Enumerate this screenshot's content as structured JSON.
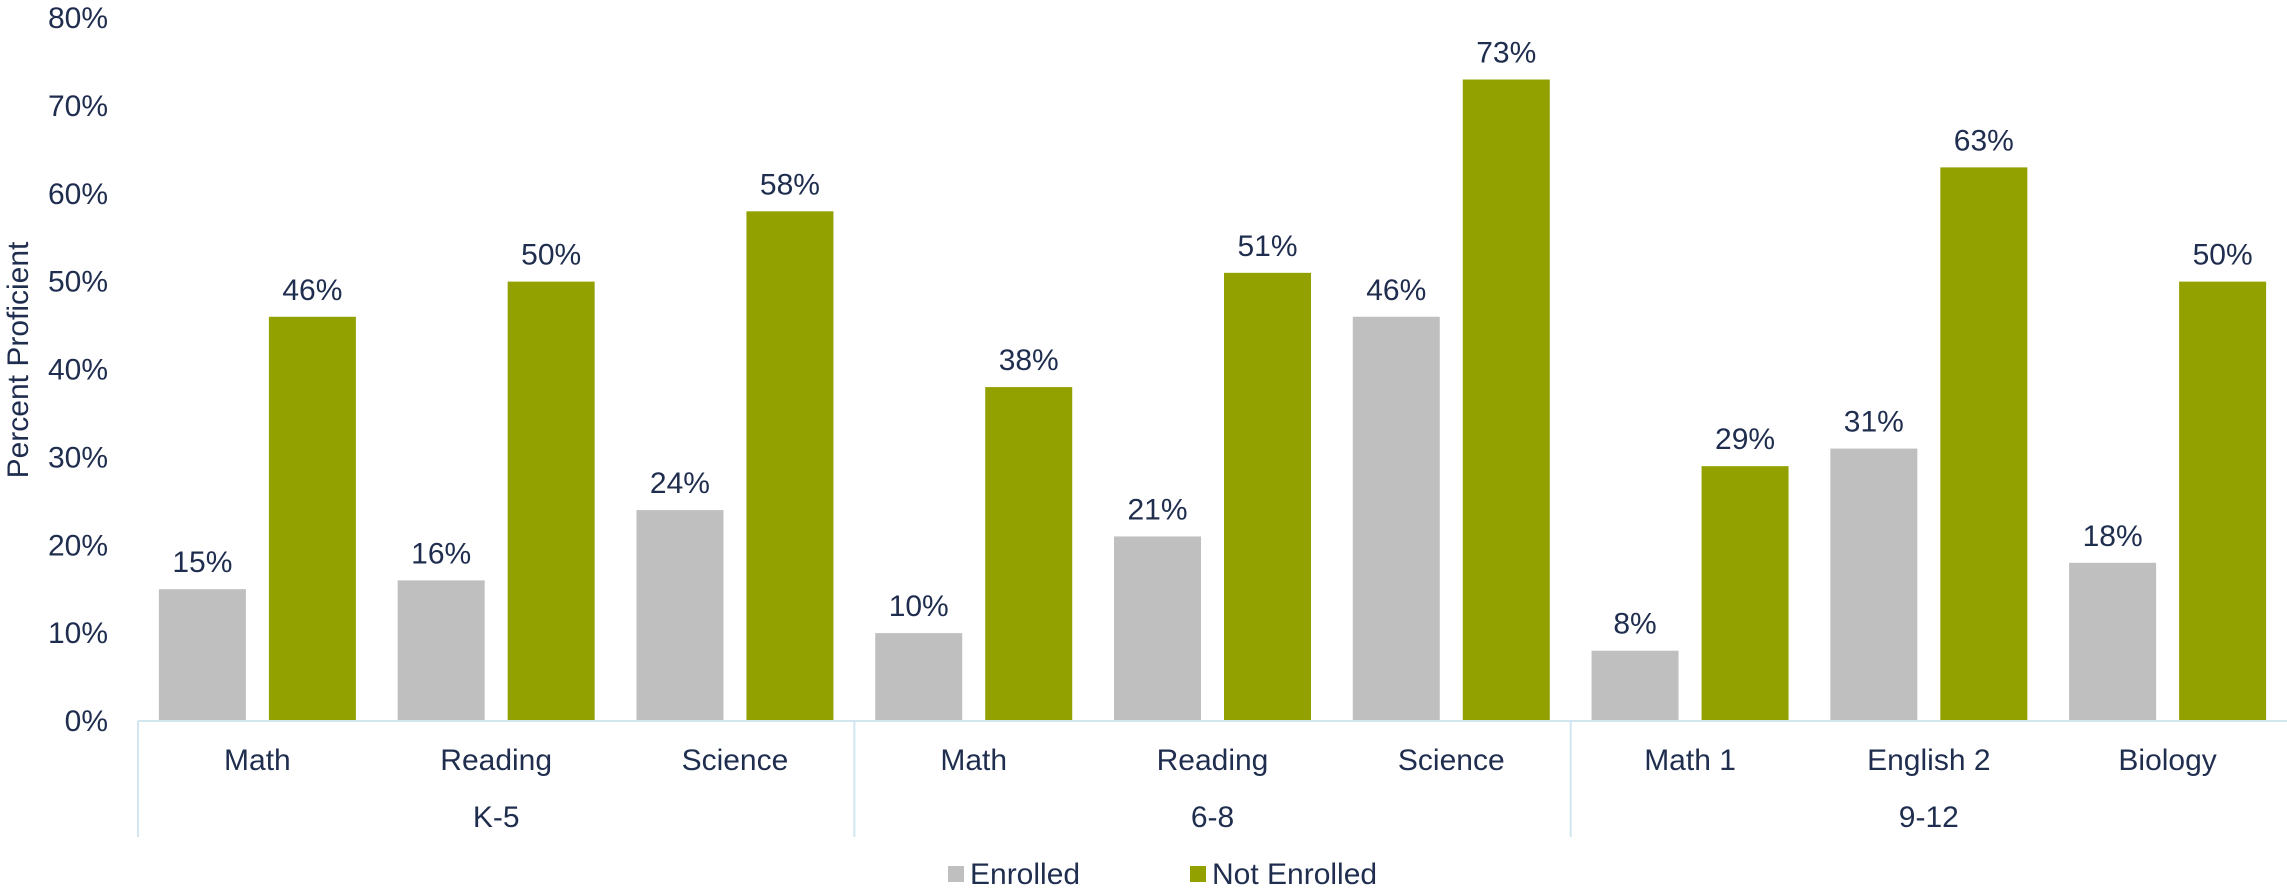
{
  "chart_data": {
    "type": "bar",
    "title": "",
    "xlabel": "",
    "ylabel": "Percent Proficient",
    "ylim": [
      0,
      80
    ],
    "y_ticks": [
      "0%",
      "10%",
      "20%",
      "30%",
      "40%",
      "50%",
      "60%",
      "70%",
      "80%"
    ],
    "grid": false,
    "legend_position": "bottom",
    "groups": [
      {
        "label": "K-5",
        "categories": [
          "Math",
          "Reading",
          "Science"
        ]
      },
      {
        "label": "6-8",
        "categories": [
          "Math",
          "Reading",
          "Science"
        ]
      },
      {
        "label": "9-12",
        "categories": [
          "Math 1",
          "English 2",
          "Biology"
        ]
      }
    ],
    "series": [
      {
        "name": "Enrolled",
        "color": "#bfbfbf",
        "values": [
          15,
          16,
          24,
          10,
          21,
          46,
          8,
          31,
          18
        ],
        "labels": [
          "15%",
          "16%",
          "24%",
          "10%",
          "21%",
          "46%",
          "8%",
          "31%",
          "18%"
        ]
      },
      {
        "name": "Not Enrolled",
        "color": "#92a000",
        "values": [
          46,
          50,
          58,
          38,
          51,
          73,
          29,
          63,
          50
        ],
        "labels": [
          "46%",
          "50%",
          "58%",
          "38%",
          "51%",
          "73%",
          "29%",
          "63%",
          "50%"
        ]
      }
    ]
  }
}
